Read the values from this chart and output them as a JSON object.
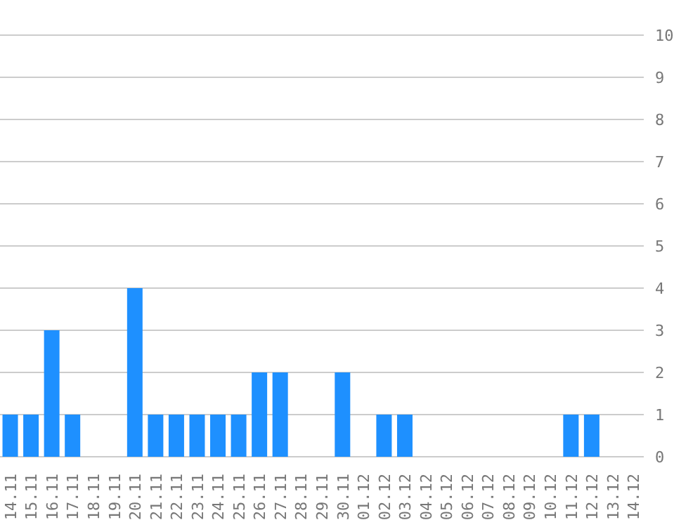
{
  "chart_data": {
    "type": "bar",
    "categories": [
      "14.11",
      "15.11",
      "16.11",
      "17.11",
      "18.11",
      "19.11",
      "20.11",
      "21.11",
      "22.11",
      "23.11",
      "24.11",
      "25.11",
      "26.11",
      "27.11",
      "28.11",
      "29.11",
      "30.11",
      "01.12",
      "02.12",
      "03.12",
      "04.12",
      "05.12",
      "06.12",
      "07.12",
      "08.12",
      "09.12",
      "10.12",
      "11.12",
      "12.12",
      "13.12",
      "14.12"
    ],
    "values": [
      1,
      1,
      3,
      1,
      0,
      0,
      4,
      1,
      1,
      1,
      1,
      1,
      2,
      2,
      0,
      0,
      2,
      0,
      1,
      1,
      0,
      0,
      0,
      0,
      0,
      0,
      0,
      1,
      1,
      0,
      0
    ],
    "color": "#1e90ff",
    "ylim": [
      0,
      10
    ],
    "yticks": [
      0,
      1,
      2,
      3,
      4,
      5,
      6,
      7,
      8,
      9,
      10
    ],
    "grid": "y"
  }
}
